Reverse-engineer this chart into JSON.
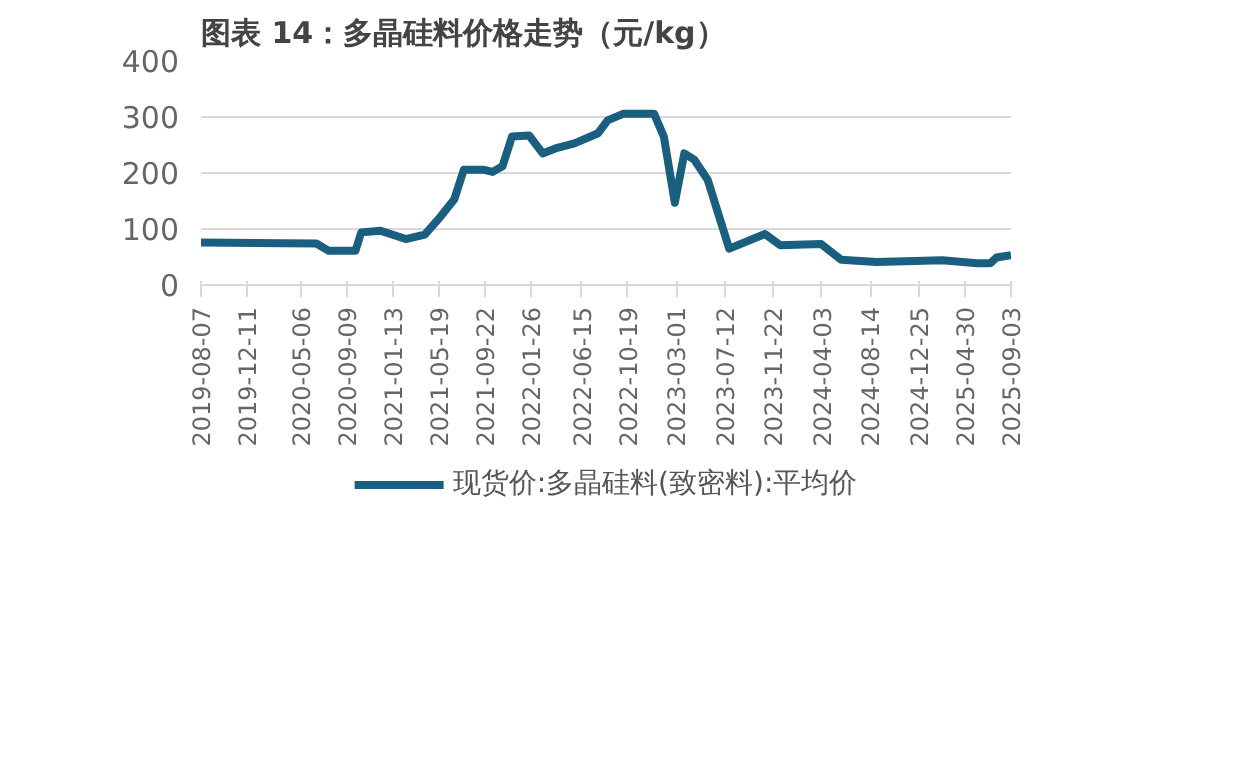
{
  "chart_data": {
    "type": "line",
    "title": "图表 14：多晶硅料价格走势（元/kg）",
    "x": [
      "2019-08-07",
      "2020-06-18",
      "2020-07-22",
      "2020-10-03",
      "2020-10-19",
      "2020-12-11",
      "2021-02-18",
      "2021-04-11",
      "2021-05-19",
      "2021-07-01",
      "2021-07-27",
      "2021-09-18",
      "2021-10-14",
      "2021-11-10",
      "2021-12-06",
      "2022-01-22",
      "2022-02-28",
      "2022-04-09",
      "2022-05-26",
      "2022-07-30",
      "2022-08-25",
      "2022-10-08",
      "2022-12-30",
      "2023-01-26",
      "2023-02-25",
      "2023-03-23",
      "2023-04-19",
      "2023-05-26",
      "2023-07-24",
      "2023-10-30",
      "2023-12-11",
      "2024-04-01",
      "2024-05-26",
      "2024-08-30",
      "2025-02-27",
      "2025-06-02",
      "2025-07-09",
      "2025-07-25",
      "2025-09-03"
    ],
    "series": [
      {
        "name": "现货价:多晶硅料(致密料):平均价",
        "color": "#1a5e80",
        "values": [
          76,
          74,
          61,
          61,
          94,
          97,
          82,
          90,
          118,
          153,
          206,
          206,
          202,
          212,
          265,
          267,
          235,
          245,
          253,
          271,
          294,
          306,
          306,
          265,
          147,
          235,
          224,
          188,
          65,
          91,
          71,
          73,
          45,
          41,
          44,
          39,
          39,
          49,
          53
        ]
      }
    ],
    "xlim": [
      "2019-08-07",
      "2025-09-03"
    ],
    "xticks": [
      "2019-08-07",
      "2019-12-11",
      "2020-05-06",
      "2020-09-09",
      "2021-01-13",
      "2021-05-19",
      "2021-09-22",
      "2022-01-26",
      "2022-06-15",
      "2022-10-19",
      "2023-03-01",
      "2023-07-12",
      "2023-11-22",
      "2024-04-03",
      "2024-08-14",
      "2024-12-25",
      "2025-04-30",
      "2025-09-03"
    ],
    "ylim": [
      0,
      400
    ],
    "yticks": [
      0,
      100,
      200,
      300,
      400
    ],
    "grid": "y",
    "legend": "bottom",
    "marker": "none",
    "line_style": "solid"
  }
}
